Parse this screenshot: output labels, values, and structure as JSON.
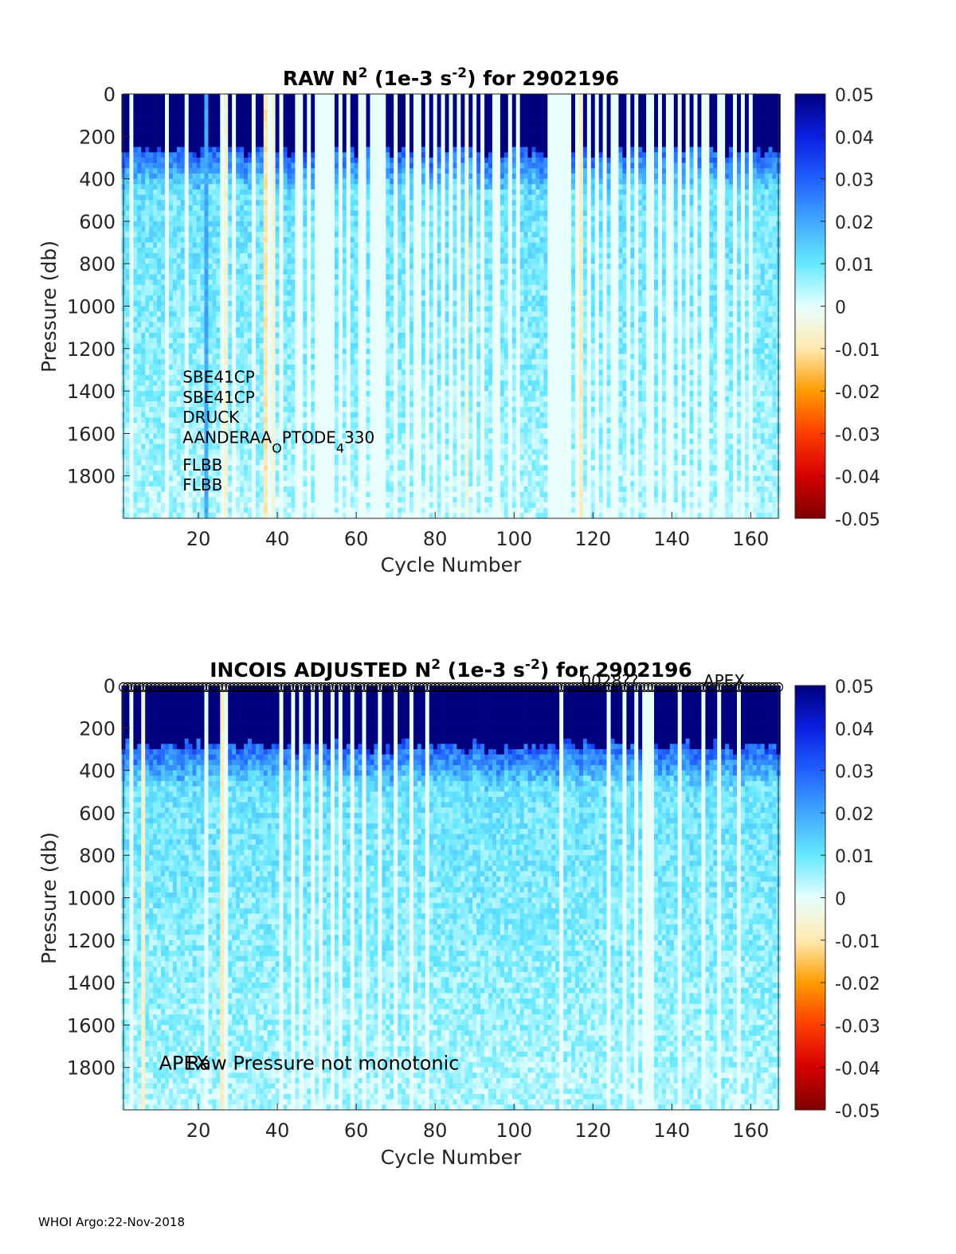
{
  "footer": "WHOI Argo:22-Nov-2018",
  "colorbar": {
    "ticks": [
      "0.05",
      "0.04",
      "0.03",
      "0.02",
      "0.01",
      "0",
      "-0.01",
      "-0.02",
      "-0.03",
      "-0.04",
      "-0.05"
    ],
    "range": [
      -0.05,
      0.05
    ],
    "colormap_stops": [
      "#7f0000",
      "#d40000",
      "#ff3c00",
      "#ff9b00",
      "#ffe9b0",
      "#e6ffff",
      "#66e8ff",
      "#40a8ff",
      "#2060ff",
      "#0a1ee0",
      "#00007f"
    ]
  },
  "chart_data": [
    {
      "type": "heatmap",
      "title_parts": {
        "pre": "RAW N",
        "sup1": "2",
        "mid": " (1e-3 s",
        "sup2": "-2",
        "post": ") for 2902196"
      },
      "xlabel": "Cycle Number",
      "ylabel": "Pressure (db)",
      "xlim": [
        1,
        167
      ],
      "ylim": [
        0,
        2000
      ],
      "xticks": [
        "20",
        "40",
        "60",
        "80",
        "100",
        "120",
        "140",
        "160"
      ],
      "yticks": [
        "0",
        "200",
        "400",
        "600",
        "800",
        "1000",
        "1200",
        "1400",
        "1600",
        "1800"
      ],
      "annotations": [
        {
          "text": "SBE41CP",
          "x": 16,
          "y": 1360
        },
        {
          "text": "SBE41CP",
          "x": 16,
          "y": 1455
        },
        {
          "text": "DRUCK",
          "x": 16,
          "y": 1550
        },
        {
          "text": "AANDERAA",
          "sub": "O",
          "text2": "PTODE",
          "sub2": "4",
          "text3": "330",
          "x": 16,
          "y": 1645
        },
        {
          "text": "FLBB",
          "x": 16,
          "y": 1775
        },
        {
          "text": "FLBB",
          "x": 16,
          "y": 1868
        }
      ],
      "missing_cycles": [
        3,
        12,
        17,
        26,
        29,
        34,
        38,
        41,
        45,
        46,
        48,
        50,
        51,
        52,
        53,
        54,
        56,
        58,
        61,
        62,
        64,
        65,
        66,
        67,
        70,
        73,
        75,
        76,
        78,
        80,
        82,
        84,
        86,
        90,
        92,
        95,
        96,
        99,
        101,
        109,
        110,
        111,
        112,
        113,
        114,
        116,
        119,
        121,
        123,
        125,
        126,
        129,
        131,
        134,
        135,
        137,
        139,
        140,
        142,
        144,
        146,
        148,
        149,
        152,
        153,
        156,
        158,
        160
      ],
      "anomalous_cycles": [
        {
          "cycle": 22,
          "value": 0.02
        },
        {
          "cycle": 27,
          "value": -0.005
        },
        {
          "cycle": 37,
          "value": -0.01
        },
        {
          "cycle": 39,
          "value": -0.004
        },
        {
          "cycle": 88,
          "value": -0.004
        },
        {
          "cycle": 117,
          "value": -0.007
        }
      ],
      "surface_dark_depth_db": 280
    },
    {
      "type": "heatmap",
      "title_parts": {
        "pre": "INCOIS  ADJUSTED N",
        "sup1": "2",
        "mid": " (1e-3 s",
        "sup2": "-2",
        "post": ") for 2902196"
      },
      "xlabel": "Cycle Number",
      "ylabel": "Pressure (db)",
      "xlim": [
        1,
        167
      ],
      "ylim": [
        0,
        2000
      ],
      "xticks": [
        "20",
        "40",
        "60",
        "80",
        "100",
        "120",
        "140",
        "160"
      ],
      "yticks": [
        "0",
        "200",
        "400",
        "600",
        "800",
        "1000",
        "1200",
        "1400",
        "1600",
        "1800"
      ],
      "annotations": [
        {
          "text": "APEX",
          "x": 10,
          "y": 1810
        },
        {
          "text": "Raw Pressure not monotonic",
          "x": 17,
          "y": 1810
        },
        {
          "text": "0028??",
          "x": 117,
          "y": 4
        },
        {
          "text": "APEX",
          "x": 148,
          "y": 4
        }
      ],
      "missing_cycles": [
        3,
        22,
        27,
        41,
        44,
        46,
        49,
        51,
        54,
        56,
        59,
        62,
        66,
        70,
        74,
        78,
        112,
        124,
        128,
        131,
        133,
        134,
        135,
        142,
        148,
        152,
        157
      ],
      "anomalous_cycles": [
        {
          "cycle": 6,
          "value": -0.006
        },
        {
          "cycle": 26,
          "value": -0.008
        },
        {
          "cycle": 157,
          "value": -0.006
        }
      ],
      "surface_dark_depth_db": 300
    }
  ]
}
